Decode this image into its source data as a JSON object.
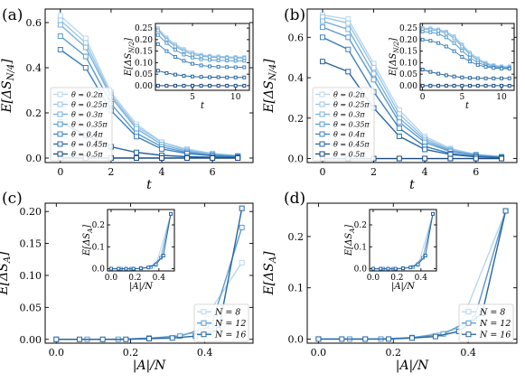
{
  "colors": {
    "theta": [
      "#b8d7ee",
      "#9ac6e6",
      "#78b1dc",
      "#5a9bd0",
      "#3d81be",
      "#2765a2",
      "#1a4a80"
    ],
    "N": [
      "#b8d7ee",
      "#5a9bd0",
      "#2765a2"
    ]
  },
  "chart_data": [
    {
      "type": "line",
      "panel_label": "(a)",
      "xlabel": "t",
      "ylabel": "E[ΔS_{N/4}]",
      "xlim": [
        -0.6,
        7.6
      ],
      "ylim": [
        -0.02,
        0.66
      ],
      "xticks": [
        "0",
        "2",
        "4",
        "6"
      ],
      "yticks": [
        "0.0",
        "0.2",
        "0.4",
        "0.6"
      ],
      "legend_position": "center-left",
      "x": [
        0,
        1,
        2,
        3,
        4,
        5,
        6,
        7
      ],
      "series": [
        {
          "name": "θ = 0.2π",
          "values": [
            0.63,
            0.53,
            0.29,
            0.15,
            0.07,
            0.04,
            0.02,
            0.01
          ]
        },
        {
          "name": "θ = 0.25π",
          "values": [
            0.61,
            0.51,
            0.28,
            0.14,
            0.07,
            0.035,
            0.02,
            0.01
          ]
        },
        {
          "name": "θ = 0.3π",
          "values": [
            0.59,
            0.49,
            0.27,
            0.13,
            0.06,
            0.03,
            0.015,
            0.01
          ]
        },
        {
          "name": "θ = 0.35π",
          "values": [
            0.54,
            0.45,
            0.24,
            0.11,
            0.05,
            0.025,
            0.012,
            0.008
          ]
        },
        {
          "name": "θ = 0.4π",
          "values": [
            0.48,
            0.4,
            0.21,
            0.095,
            0.04,
            0.02,
            0.01,
            0.005
          ]
        },
        {
          "name": "θ = 0.45π",
          "values": [
            0.16,
            0.1,
            0.05,
            0.025,
            0.012,
            0.006,
            0.003,
            0.002
          ]
        },
        {
          "name": "θ = 0.5π",
          "values": [
            0.0,
            0.0,
            0.0,
            0.0,
            0.0,
            0.0,
            0.0,
            0.0
          ]
        }
      ],
      "inset": {
        "xlabel": "t",
        "ylabel": "E[ΔS_{N/2}]",
        "xlim": [
          0.7,
          11.6
        ],
        "ylim": [
          -0.02,
          0.27
        ],
        "xticks": [
          "5",
          "10"
        ],
        "yticks": [
          "0.00",
          "0.05",
          "0.10",
          "0.15",
          "0.20",
          "0.25"
        ],
        "x": [
          1,
          2,
          3,
          4,
          5,
          6,
          7,
          8,
          9,
          10,
          11
        ],
        "series": [
          {
            "name": "θ = 0.2π",
            "values": [
              0.25,
              0.21,
              0.18,
              0.16,
              0.145,
              0.135,
              0.13,
              0.128,
              0.126,
              0.125,
              0.125
            ]
          },
          {
            "name": "θ = 0.25π",
            "values": [
              0.245,
              0.205,
              0.175,
              0.155,
              0.14,
              0.132,
              0.128,
              0.126,
              0.124,
              0.123,
              0.123
            ]
          },
          {
            "name": "θ = 0.3π",
            "values": [
              0.24,
              0.2,
              0.17,
              0.15,
              0.135,
              0.128,
              0.124,
              0.122,
              0.121,
              0.12,
              0.12
            ]
          },
          {
            "name": "θ = 0.35π",
            "values": [
              0.22,
              0.185,
              0.155,
              0.135,
              0.122,
              0.115,
              0.112,
              0.11,
              0.109,
              0.108,
              0.108
            ]
          },
          {
            "name": "θ = 0.4π",
            "values": [
              0.18,
              0.15,
              0.125,
              0.108,
              0.095,
              0.088,
              0.084,
              0.082,
              0.081,
              0.08,
              0.08
            ]
          },
          {
            "name": "θ = 0.45π",
            "values": [
              0.065,
              0.055,
              0.048,
              0.043,
              0.04,
              0.038,
              0.037,
              0.037,
              0.036,
              0.036,
              0.036
            ]
          },
          {
            "name": "θ = 0.5π",
            "values": [
              0.0,
              0.0,
              0.0,
              0.0,
              0.0,
              0.0,
              0.0,
              0.0,
              0.0,
              0.0,
              0.0
            ]
          }
        ]
      }
    },
    {
      "type": "line",
      "panel_label": "(b)",
      "xlabel": "t",
      "ylabel": "E[ΔS_{N/4}]",
      "xlim": [
        -0.6,
        7.6
      ],
      "ylim": [
        -0.02,
        0.74
      ],
      "xticks": [
        "0",
        "2",
        "4",
        "6"
      ],
      "yticks": [
        "0.0",
        "0.2",
        "0.4",
        "0.6"
      ],
      "legend_position": "center-left",
      "x": [
        0,
        1,
        2,
        3,
        4,
        5,
        6,
        7
      ],
      "series": [
        {
          "name": "θ = 0.2π",
          "values": [
            0.71,
            0.69,
            0.47,
            0.24,
            0.11,
            0.05,
            0.02,
            0.01
          ]
        },
        {
          "name": "θ = 0.25π",
          "values": [
            0.7,
            0.67,
            0.45,
            0.22,
            0.1,
            0.045,
            0.02,
            0.01
          ]
        },
        {
          "name": "θ = 0.3π",
          "values": [
            0.68,
            0.64,
            0.42,
            0.2,
            0.09,
            0.04,
            0.018,
            0.008
          ]
        },
        {
          "name": "θ = 0.35π",
          "values": [
            0.65,
            0.6,
            0.39,
            0.18,
            0.08,
            0.035,
            0.015,
            0.007
          ]
        },
        {
          "name": "θ = 0.4π",
          "values": [
            0.6,
            0.54,
            0.33,
            0.15,
            0.06,
            0.025,
            0.01,
            0.005
          ]
        },
        {
          "name": "θ = 0.45π",
          "values": [
            0.48,
            0.43,
            0.25,
            0.11,
            0.045,
            0.02,
            0.008,
            0.004
          ]
        },
        {
          "name": "θ = 0.5π",
          "values": [
            0.0,
            0.0,
            0.0,
            0.0,
            0.0,
            0.0,
            0.0,
            0.0
          ]
        }
      ],
      "inset": {
        "xlabel": "t",
        "ylabel": "E[ΔS_{N/2}]",
        "xlim": [
          -0.3,
          11.6
        ],
        "ylim": [
          -0.02,
          0.27
        ],
        "xticks": [
          "0",
          "5",
          "10"
        ],
        "yticks": [
          "0.00",
          "0.05",
          "0.10",
          "0.15",
          "0.20",
          "0.25"
        ],
        "x": [
          0,
          1,
          2,
          3,
          4,
          5,
          6,
          7,
          8,
          9,
          10,
          11
        ],
        "series": [
          {
            "name": "θ = 0.2π",
            "values": [
              0.25,
              0.25,
              0.245,
              0.235,
              0.215,
              0.18,
              0.145,
              0.12,
              0.1,
              0.09,
              0.085,
              0.085
            ]
          },
          {
            "name": "θ = 0.25π",
            "values": [
              0.25,
              0.248,
              0.243,
              0.233,
              0.212,
              0.176,
              0.14,
              0.115,
              0.098,
              0.088,
              0.083,
              0.082
            ]
          },
          {
            "name": "θ = 0.3π",
            "values": [
              0.245,
              0.243,
              0.238,
              0.228,
              0.205,
              0.17,
              0.135,
              0.11,
              0.094,
              0.085,
              0.08,
              0.079
            ]
          },
          {
            "name": "θ = 0.35π",
            "values": [
              0.235,
              0.232,
              0.225,
              0.21,
              0.185,
              0.152,
              0.122,
              0.1,
              0.088,
              0.08,
              0.077,
              0.076
            ]
          },
          {
            "name": "θ = 0.4π",
            "values": [
              0.2,
              0.195,
              0.185,
              0.17,
              0.15,
              0.125,
              0.105,
              0.09,
              0.082,
              0.077,
              0.074,
              0.074
            ]
          },
          {
            "name": "θ = 0.45π",
            "values": [
              0.07,
              0.06,
              0.052,
              0.045,
              0.04,
              0.036,
              0.034,
              0.033,
              0.032,
              0.032,
              0.032,
              0.032
            ]
          },
          {
            "name": "θ = 0.5π",
            "values": [
              0.0,
              0.0,
              0.0,
              0.0,
              0.0,
              0.0,
              0.0,
              0.0,
              0.0,
              0.0,
              0.0,
              0.0
            ]
          }
        ]
      }
    },
    {
      "type": "line",
      "panel_label": "(c)",
      "xlabel": "|A|/N",
      "ylabel": "E[ΔS_A]",
      "xlim": [
        -0.03,
        0.53
      ],
      "ylim": [
        -0.006,
        0.213
      ],
      "xticks": [
        "0.0",
        "0.2",
        "0.4"
      ],
      "yticks": [
        "0.00",
        "0.05",
        "0.10",
        "0.15",
        "0.20"
      ],
      "legend_position": "bottom-right",
      "series": [
        {
          "name": "N = 8",
          "x": [
            0,
            0.125,
            0.25,
            0.375,
            0.5
          ],
          "values": [
            0.0,
            0.0,
            0.001,
            0.01,
            0.12
          ]
        },
        {
          "name": "N = 12",
          "x": [
            0,
            0.0833,
            0.1667,
            0.25,
            0.3333,
            0.4167,
            0.5
          ],
          "values": [
            0.0,
            0.0,
            0.0,
            0.002,
            0.005,
            0.02,
            0.175
          ]
        },
        {
          "name": "N = 16",
          "x": [
            0,
            0.0625,
            0.125,
            0.1875,
            0.25,
            0.3125,
            0.375,
            0.4375,
            0.5
          ],
          "values": [
            0.0,
            0.0,
            0.0,
            0.0,
            0.001,
            0.002,
            0.005,
            0.015,
            0.205
          ]
        }
      ],
      "inset": {
        "xlabel": "|A|/N",
        "ylabel": "E[ΔS_A]",
        "xlim": [
          -0.03,
          0.53
        ],
        "ylim": [
          -0.01,
          0.27
        ],
        "xticks": [
          "0.0",
          "0.2",
          "0.4"
        ],
        "yticks": [
          "0.0",
          "0.1",
          "0.2"
        ],
        "series": [
          {
            "name": "N = 8",
            "x": [
              0,
              0.125,
              0.25,
              0.375,
              0.5
            ],
            "values": [
              0.0,
              0.0,
              0.0,
              0.015,
              0.25
            ]
          },
          {
            "name": "N = 12",
            "x": [
              0,
              0.0833,
              0.1667,
              0.25,
              0.3333,
              0.4167,
              0.5
            ],
            "values": [
              0.0,
              0.0,
              0.0,
              0.002,
              0.008,
              0.05,
              0.25
            ]
          },
          {
            "name": "N = 16",
            "x": [
              0,
              0.0625,
              0.125,
              0.1875,
              0.25,
              0.3125,
              0.375,
              0.4375,
              0.5
            ],
            "values": [
              0.0,
              0.0,
              0.0,
              0.0,
              0.002,
              0.006,
              0.02,
              0.06,
              0.25
            ]
          }
        ]
      }
    },
    {
      "type": "line",
      "panel_label": "(d)",
      "xlabel": "|A|/N",
      "ylabel": "E[ΔS_A]",
      "xlim": [
        -0.03,
        0.53
      ],
      "ylim": [
        -0.008,
        0.265
      ],
      "xticks": [
        "0.0",
        "0.2",
        "0.4"
      ],
      "yticks": [
        "0.0",
        "0.1",
        "0.2"
      ],
      "legend_position": "bottom-right",
      "series": [
        {
          "name": "N = 8",
          "x": [
            0,
            0.125,
            0.25,
            0.375,
            0.5
          ],
          "values": [
            0.0,
            0.0,
            0.002,
            0.02,
            0.25
          ]
        },
        {
          "name": "N = 12",
          "x": [
            0,
            0.0833,
            0.1667,
            0.25,
            0.3333,
            0.4167,
            0.5
          ],
          "values": [
            0.0,
            0.0,
            0.0,
            0.003,
            0.01,
            0.04,
            0.25
          ]
        },
        {
          "name": "N = 16",
          "x": [
            0,
            0.0625,
            0.125,
            0.1875,
            0.25,
            0.3125,
            0.375,
            0.4375,
            0.5
          ],
          "values": [
            0.0,
            0.0,
            0.0,
            0.0,
            0.002,
            0.005,
            0.015,
            0.05,
            0.25
          ]
        }
      ],
      "inset": {
        "xlabel": "|A|/N",
        "ylabel": "E[ΔS_A]",
        "xlim": [
          -0.03,
          0.53
        ],
        "ylim": [
          -0.01,
          0.27
        ],
        "xticks": [
          "0.0",
          "0.2",
          "0.4"
        ],
        "yticks": [
          "0.0",
          "0.1",
          "0.2"
        ],
        "series": [
          {
            "name": "N = 8",
            "x": [
              0,
              0.125,
              0.25,
              0.375,
              0.5
            ],
            "values": [
              0.0,
              0.0,
              0.0,
              0.015,
              0.25
            ]
          },
          {
            "name": "N = 12",
            "x": [
              0,
              0.0833,
              0.1667,
              0.25,
              0.3333,
              0.4167,
              0.5
            ],
            "values": [
              0.0,
              0.0,
              0.0,
              0.002,
              0.008,
              0.05,
              0.25
            ]
          },
          {
            "name": "N = 16",
            "x": [
              0,
              0.0625,
              0.125,
              0.1875,
              0.25,
              0.3125,
              0.375,
              0.4375,
              0.5
            ],
            "values": [
              0.0,
              0.0,
              0.0,
              0.0,
              0.002,
              0.006,
              0.02,
              0.06,
              0.25
            ]
          }
        ]
      }
    }
  ]
}
